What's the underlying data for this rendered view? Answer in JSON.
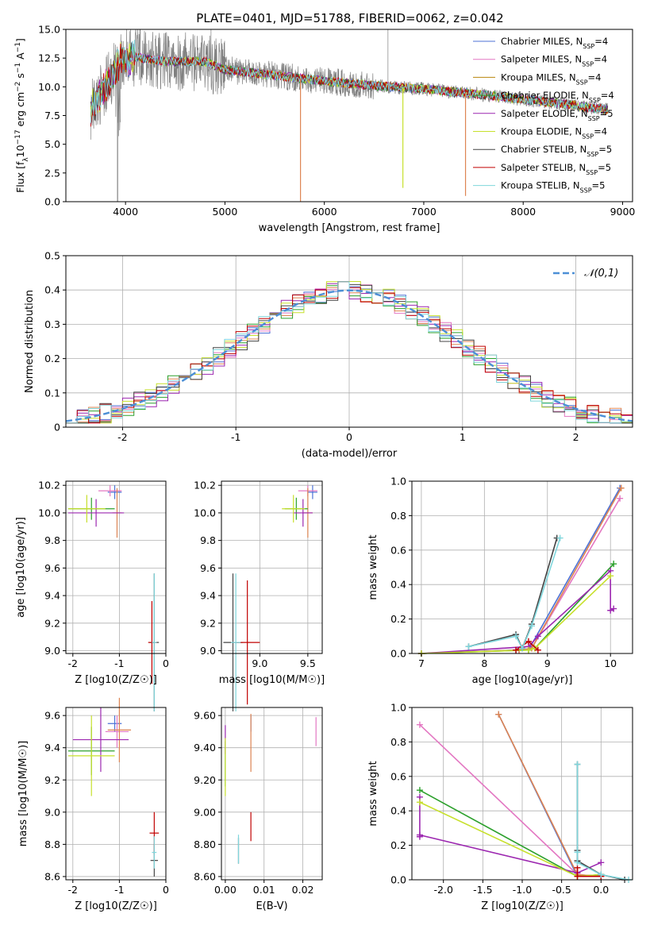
{
  "figure": {
    "title": "PLATE=0401, MJD=51788, FIBERID=0062, z=0.042"
  },
  "legend_entries": [
    {
      "name": "Chabrier MILES, N_SSP=4",
      "base": "Chabrier MILES, N",
      "sub": "SSP",
      "tail": "=4",
      "color": "#4c72d6"
    },
    {
      "name": "Salpeter MILES, N_SSP=4",
      "base": "Salpeter MILES, N",
      "sub": "SSP",
      "tail": "=4",
      "color": "#e377c2"
    },
    {
      "name": "Kroupa MILES, N_SSP=4",
      "base": "Kroupa MILES, N",
      "sub": "SSP",
      "tail": "=4",
      "color": "#b8860b"
    },
    {
      "name": "Chabrier ELODIE, N_SSP=4",
      "base": "Chabrier ELODIE, N",
      "sub": "SSP",
      "tail": "=4",
      "color": "#2ca02c"
    },
    {
      "name": "Salpeter ELODIE, N_SSP=5",
      "base": "Salpeter ELODIE, N",
      "sub": "SSP",
      "tail": "=5",
      "color": "#9c27b0"
    },
    {
      "name": "Kroupa ELODIE, N_SSP=4",
      "base": "Kroupa ELODIE, N",
      "sub": "SSP",
      "tail": "=4",
      "color": "#c7e02c"
    },
    {
      "name": "Chabrier STELIB, N_SSP=5",
      "base": "Chabrier STELIB, N",
      "sub": "SSP",
      "tail": "=5",
      "color": "#444444"
    },
    {
      "name": "Salpeter STELIB, N_SSP=5",
      "base": "Salpeter STELIB, N",
      "sub": "SSP",
      "tail": "=5",
      "color": "#c00000"
    },
    {
      "name": "Kroupa STELIB, N_SSP=5",
      "base": "Kroupa STELIB, N",
      "sub": "SSP",
      "tail": "=5",
      "color": "#7fd6dc"
    }
  ],
  "chart_data": [
    {
      "id": "spectrum",
      "type": "line",
      "xlabel": "wavelength [Angstrom, rest frame]",
      "ylabel": "Flux [f_λ 10^-17 erg cm^-2 s^-1 A^-1]",
      "xlim": [
        3400,
        9100
      ],
      "ylim": [
        0,
        15
      ],
      "xticks": [
        4000,
        5000,
        6000,
        7000,
        8000,
        9000
      ],
      "yticks": [
        0.0,
        2.5,
        5.0,
        7.5,
        10.0,
        12.5,
        15.0
      ],
      "grid": false,
      "legend": "upper right",
      "data_x_range": [
        3650,
        8850
      ],
      "continuum_points": [
        [
          3650,
          8.0
        ],
        [
          3800,
          10.0
        ],
        [
          3950,
          12.3
        ],
        [
          4100,
          12.6
        ],
        [
          4400,
          12.2
        ],
        [
          4800,
          12.2
        ],
        [
          5000,
          11.5
        ],
        [
          5500,
          11.0
        ],
        [
          6000,
          10.5
        ],
        [
          6500,
          10.1
        ],
        [
          7000,
          9.8
        ],
        [
          7500,
          9.4
        ],
        [
          8000,
          8.9
        ],
        [
          8500,
          8.4
        ],
        [
          8850,
          8.0
        ]
      ],
      "observed_color": "#808080",
      "model_dips": [
        {
          "x": 5760,
          "y": 0.0,
          "color": "#dd8452"
        },
        {
          "x": 6790,
          "y": 1.2,
          "color": "#c7e02c"
        },
        {
          "x": 7420,
          "y": 0.5,
          "color": "#dd8452"
        },
        {
          "x": 3920,
          "y": 0.0,
          "color": "#808080"
        }
      ]
    },
    {
      "id": "residuals",
      "type": "line",
      "xlabel": "(data-model)/error",
      "ylabel": "Normed distribution",
      "xlim": [
        -2.5,
        2.5
      ],
      "ylim": [
        0,
        0.5
      ],
      "xticks": [
        -2,
        -1,
        0,
        1,
        2
      ],
      "yticks": [
        0.0,
        0.1,
        0.2,
        0.3,
        0.4,
        0.5
      ],
      "grid": true,
      "legend": "upper right",
      "legend_label": "𝒩(0,1)",
      "gaussian_color": "#4c8fd6",
      "bin_width": 0.1,
      "hist_colors": [
        "#4c72d6",
        "#e377c2",
        "#dd8452",
        "#2ca02c",
        "#9c27b0",
        "#c7e02c",
        "#444444",
        "#c00000",
        "#7fd6dc"
      ]
    },
    {
      "id": "age_vs_Z",
      "type": "scatter",
      "xlabel": "Z [log10(Z/Z☉)]",
      "ylabel": "age [log10(age/yr)]",
      "xlim": [
        -2.15,
        0.0
      ],
      "ylim": [
        8.98,
        10.23
      ],
      "xticks": [
        -2,
        -1,
        0
      ],
      "yticks": [
        9.0,
        9.2,
        9.4,
        9.6,
        9.8,
        10.0,
        10.2
      ],
      "grid": true,
      "points": [
        {
          "x": -1.1,
          "y": 10.15,
          "dx": 0.15,
          "dy": 0.05,
          "color": "#4c72d6"
        },
        {
          "x": -1.2,
          "y": 10.16,
          "dx": 0.25,
          "dy": 0.04,
          "color": "#e377c2"
        },
        {
          "x": -1.05,
          "y": 10.0,
          "dx": 0.1,
          "dy": 0.18,
          "color": "#dd8452"
        },
        {
          "x": -1.6,
          "y": 10.03,
          "dx": 0.5,
          "dy": 0.08,
          "color": "#2ca02c"
        },
        {
          "x": -1.5,
          "y": 10.0,
          "dx": 0.6,
          "dy": 0.1,
          "color": "#9c27b0"
        },
        {
          "x": -1.7,
          "y": 10.03,
          "dx": 0.4,
          "dy": 0.1,
          "color": "#c7e02c"
        },
        {
          "x": -0.25,
          "y": 9.06,
          "dx": 0.1,
          "dy": 0.5,
          "color": "#444444"
        },
        {
          "x": -0.3,
          "y": 9.06,
          "dx": 0.08,
          "dy": 0.3,
          "color": "#c00000"
        },
        {
          "x": -0.25,
          "y": 9.06,
          "dx": 0.05,
          "dy": 0.5,
          "color": "#7fd6dc"
        }
      ]
    },
    {
      "id": "age_vs_mass",
      "type": "scatter",
      "xlabel": "mass [log10(M/M☉)]",
      "ylabel": "",
      "xlim": [
        8.6,
        9.65
      ],
      "ylim": [
        8.98,
        10.23
      ],
      "xticks": [
        9.0,
        9.5
      ],
      "yticks": [
        9.0,
        9.2,
        9.4,
        9.6,
        9.8,
        10.0,
        10.2
      ],
      "grid": true,
      "points": [
        {
          "x": 9.55,
          "y": 10.15,
          "dx": 0.05,
          "dy": 0.05,
          "color": "#4c72d6"
        },
        {
          "x": 9.5,
          "y": 10.16,
          "dx": 0.1,
          "dy": 0.04,
          "color": "#e377c2"
        },
        {
          "x": 9.5,
          "y": 10.0,
          "dx": 0.05,
          "dy": 0.18,
          "color": "#dd8452"
        },
        {
          "x": 9.38,
          "y": 10.03,
          "dx": 0.12,
          "dy": 0.08,
          "color": "#2ca02c"
        },
        {
          "x": 9.45,
          "y": 10.0,
          "dx": 0.1,
          "dy": 0.1,
          "color": "#9c27b0"
        },
        {
          "x": 9.35,
          "y": 10.03,
          "dx": 0.12,
          "dy": 0.1,
          "color": "#c7e02c"
        },
        {
          "x": 8.72,
          "y": 9.06,
          "dx": 0.1,
          "dy": 0.5,
          "color": "#444444"
        },
        {
          "x": 8.87,
          "y": 9.06,
          "dx": 0.13,
          "dy": 0.45,
          "color": "#c00000"
        },
        {
          "x": 8.75,
          "y": 9.06,
          "dx": 0.05,
          "dy": 0.5,
          "color": "#7fd6dc"
        }
      ]
    },
    {
      "id": "weight_vs_age",
      "type": "line",
      "xlabel": "age [log10(age/yr)]",
      "ylabel": "mass weight",
      "xlim": [
        6.85,
        10.35
      ],
      "ylim": [
        0.0,
        1.0
      ],
      "xticks": [
        7,
        8,
        9,
        10
      ],
      "yticks": [
        0.0,
        0.2,
        0.4,
        0.6,
        0.8,
        1.0
      ],
      "grid": true,
      "series": [
        {
          "color": "#4c72d6",
          "points": [
            [
              7.0,
              0.0
            ],
            [
              8.5,
              0.02
            ],
            [
              8.7,
              0.02
            ],
            [
              10.15,
              0.96
            ]
          ]
        },
        {
          "color": "#e377c2",
          "points": [
            [
              7.0,
              0.0
            ],
            [
              8.55,
              0.02
            ],
            [
              8.75,
              0.03
            ],
            [
              10.15,
              0.9
            ]
          ]
        },
        {
          "color": "#dd8452",
          "points": [
            [
              7.0,
              0.0
            ],
            [
              8.55,
              0.02
            ],
            [
              8.75,
              0.03
            ],
            [
              10.17,
              0.96
            ]
          ]
        },
        {
          "color": "#2ca02c",
          "points": [
            [
              7.0,
              0.0
            ],
            [
              8.7,
              0.02
            ],
            [
              8.8,
              0.03
            ],
            [
              10.05,
              0.52
            ]
          ]
        },
        {
          "color": "#9c27b0",
          "points": [
            [
              7.0,
              0.0
            ],
            [
              8.7,
              0.04
            ],
            [
              8.85,
              0.1
            ],
            [
              10.0,
              0.48
            ],
            [
              10.0,
              0.25
            ],
            [
              10.05,
              0.26
            ]
          ]
        },
        {
          "color": "#c7e02c",
          "points": [
            [
              7.0,
              0.0
            ],
            [
              8.7,
              0.02
            ],
            [
              8.8,
              0.03
            ],
            [
              10.0,
              0.45
            ]
          ]
        },
        {
          "color": "#444444",
          "points": [
            [
              7.75,
              0.04
            ],
            [
              8.5,
              0.11
            ],
            [
              8.6,
              0.03
            ],
            [
              8.75,
              0.17
            ],
            [
              9.15,
              0.67
            ]
          ]
        },
        {
          "color": "#c00000",
          "points": [
            [
              8.5,
              0.02
            ],
            [
              8.7,
              0.07
            ],
            [
              8.85,
              0.02
            ]
          ]
        },
        {
          "color": "#7fd6dc",
          "points": [
            [
              7.75,
              0.04
            ],
            [
              8.5,
              0.1
            ],
            [
              8.6,
              0.03
            ],
            [
              8.75,
              0.16
            ],
            [
              9.2,
              0.67
            ]
          ]
        }
      ]
    },
    {
      "id": "mass_vs_Z",
      "type": "scatter",
      "xlabel": "Z [log10(Z/Z☉)]",
      "ylabel": "mass [log10(M/M☉)]",
      "xlim": [
        -2.15,
        0.0
      ],
      "ylim": [
        8.58,
        9.65
      ],
      "xticks": [
        -2,
        -1,
        0
      ],
      "yticks": [
        8.6,
        8.8,
        9.0,
        9.2,
        9.4,
        9.6
      ],
      "grid": true,
      "points": [
        {
          "x": -1.1,
          "y": 9.55,
          "dx": 0.15,
          "dy": 0.05,
          "color": "#4c72d6"
        },
        {
          "x": -1.05,
          "y": 9.5,
          "dx": 0.25,
          "dy": 0.1,
          "color": "#e377c2"
        },
        {
          "x": -1.0,
          "y": 9.51,
          "dx": 0.25,
          "dy": 0.2,
          "color": "#dd8452"
        },
        {
          "x": -1.6,
          "y": 9.38,
          "dx": 0.5,
          "dy": 0.15,
          "color": "#2ca02c"
        },
        {
          "x": -1.4,
          "y": 9.45,
          "dx": 0.6,
          "dy": 0.2,
          "color": "#9c27b0"
        },
        {
          "x": -1.6,
          "y": 9.35,
          "dx": 0.5,
          "dy": 0.25,
          "color": "#c7e02c"
        },
        {
          "x": -0.25,
          "y": 8.7,
          "dx": 0.08,
          "dy": 0.1,
          "color": "#444444"
        },
        {
          "x": -0.25,
          "y": 8.87,
          "dx": 0.1,
          "dy": 0.13,
          "color": "#c00000"
        },
        {
          "x": -0.25,
          "y": 8.75,
          "dx": 0.05,
          "dy": 0.1,
          "color": "#7fd6dc"
        }
      ]
    },
    {
      "id": "mass_vs_EBV",
      "type": "scatter",
      "xlabel": "E(B-V)",
      "ylabel": "",
      "xlim": [
        -0.001,
        0.025
      ],
      "ylim": [
        8.58,
        9.65
      ],
      "xticks": [
        0.0,
        0.01,
        0.02
      ],
      "yticks": [
        8.6,
        8.8,
        9.0,
        9.2,
        9.4,
        9.6
      ],
      "grid": true,
      "points": [
        {
          "x": 0.0066,
          "y": 9.55,
          "dx": 0.0,
          "dy": 0.05,
          "color": "#4c72d6"
        },
        {
          "x": 0.0234,
          "y": 9.5,
          "dx": 0.0,
          "dy": 0.09,
          "color": "#e377c2"
        },
        {
          "x": 0.0066,
          "y": 9.43,
          "dx": 0.0,
          "dy": 0.18,
          "color": "#dd8452"
        },
        {
          "x": 0.0,
          "y": 9.3,
          "dx": 0.0,
          "dy": 0.14,
          "color": "#2ca02c"
        },
        {
          "x": 0.0,
          "y": 9.45,
          "dx": 0.0,
          "dy": 0.09,
          "color": "#9c27b0"
        },
        {
          "x": 0.0,
          "y": 9.28,
          "dx": 0.0,
          "dy": 0.18,
          "color": "#c7e02c"
        },
        {
          "x": 0.0034,
          "y": 8.76,
          "dx": 0.0,
          "dy": 0.08,
          "color": "#444444"
        },
        {
          "x": 0.0066,
          "y": 8.91,
          "dx": 0.0,
          "dy": 0.09,
          "color": "#c00000"
        },
        {
          "x": 0.0034,
          "y": 8.77,
          "dx": 0.0,
          "dy": 0.09,
          "color": "#7fd6dc"
        }
      ]
    },
    {
      "id": "weight_vs_Z",
      "type": "line",
      "xlabel": "Z [log10(Z/Z☉)]",
      "ylabel": "mass weight",
      "xlim": [
        -2.4,
        0.4
      ],
      "ylim": [
        0.0,
        1.0
      ],
      "xticks": [
        -2.0,
        -1.5,
        -1.0,
        -0.5,
        0.0
      ],
      "yticks": [
        0.0,
        0.2,
        0.4,
        0.6,
        0.8,
        1.0
      ],
      "grid": true,
      "series": [
        {
          "color": "#4c72d6",
          "points": [
            [
              -1.3,
              0.96
            ],
            [
              -0.3,
              0.02
            ],
            [
              0.0,
              0.02
            ]
          ]
        },
        {
          "color": "#e377c2",
          "points": [
            [
              -2.3,
              0.9
            ],
            [
              -0.3,
              0.03
            ],
            [
              0.0,
              0.02
            ]
          ]
        },
        {
          "color": "#dd8452",
          "points": [
            [
              -1.3,
              0.96
            ],
            [
              -0.3,
              0.03
            ],
            [
              0.0,
              0.02
            ]
          ]
        },
        {
          "color": "#2ca02c",
          "points": [
            [
              -2.3,
              0.52
            ],
            [
              -0.3,
              0.02
            ],
            [
              0.0,
              0.03
            ]
          ]
        },
        {
          "color": "#9c27b0",
          "points": [
            [
              -2.3,
              0.48
            ],
            [
              -2.3,
              0.25
            ],
            [
              -2.3,
              0.26
            ],
            [
              -0.3,
              0.04
            ],
            [
              0.0,
              0.1
            ]
          ]
        },
        {
          "color": "#c7e02c",
          "points": [
            [
              -2.3,
              0.45
            ],
            [
              -0.3,
              0.02
            ],
            [
              0.0,
              0.03
            ]
          ]
        },
        {
          "color": "#444444",
          "points": [
            [
              -0.3,
              0.67
            ],
            [
              -0.3,
              0.17
            ],
            [
              -0.3,
              0.11
            ],
            [
              0.0,
              0.03
            ],
            [
              0.3,
              0.0
            ]
          ]
        },
        {
          "color": "#c00000",
          "points": [
            [
              -0.3,
              0.07
            ],
            [
              -0.3,
              0.02
            ],
            [
              0.0,
              0.02
            ]
          ]
        },
        {
          "color": "#7fd6dc",
          "points": [
            [
              -0.3,
              0.67
            ],
            [
              -0.3,
              0.16
            ],
            [
              -0.3,
              0.1
            ],
            [
              0.0,
              0.03
            ],
            [
              0.35,
              0.0
            ]
          ]
        }
      ]
    }
  ]
}
